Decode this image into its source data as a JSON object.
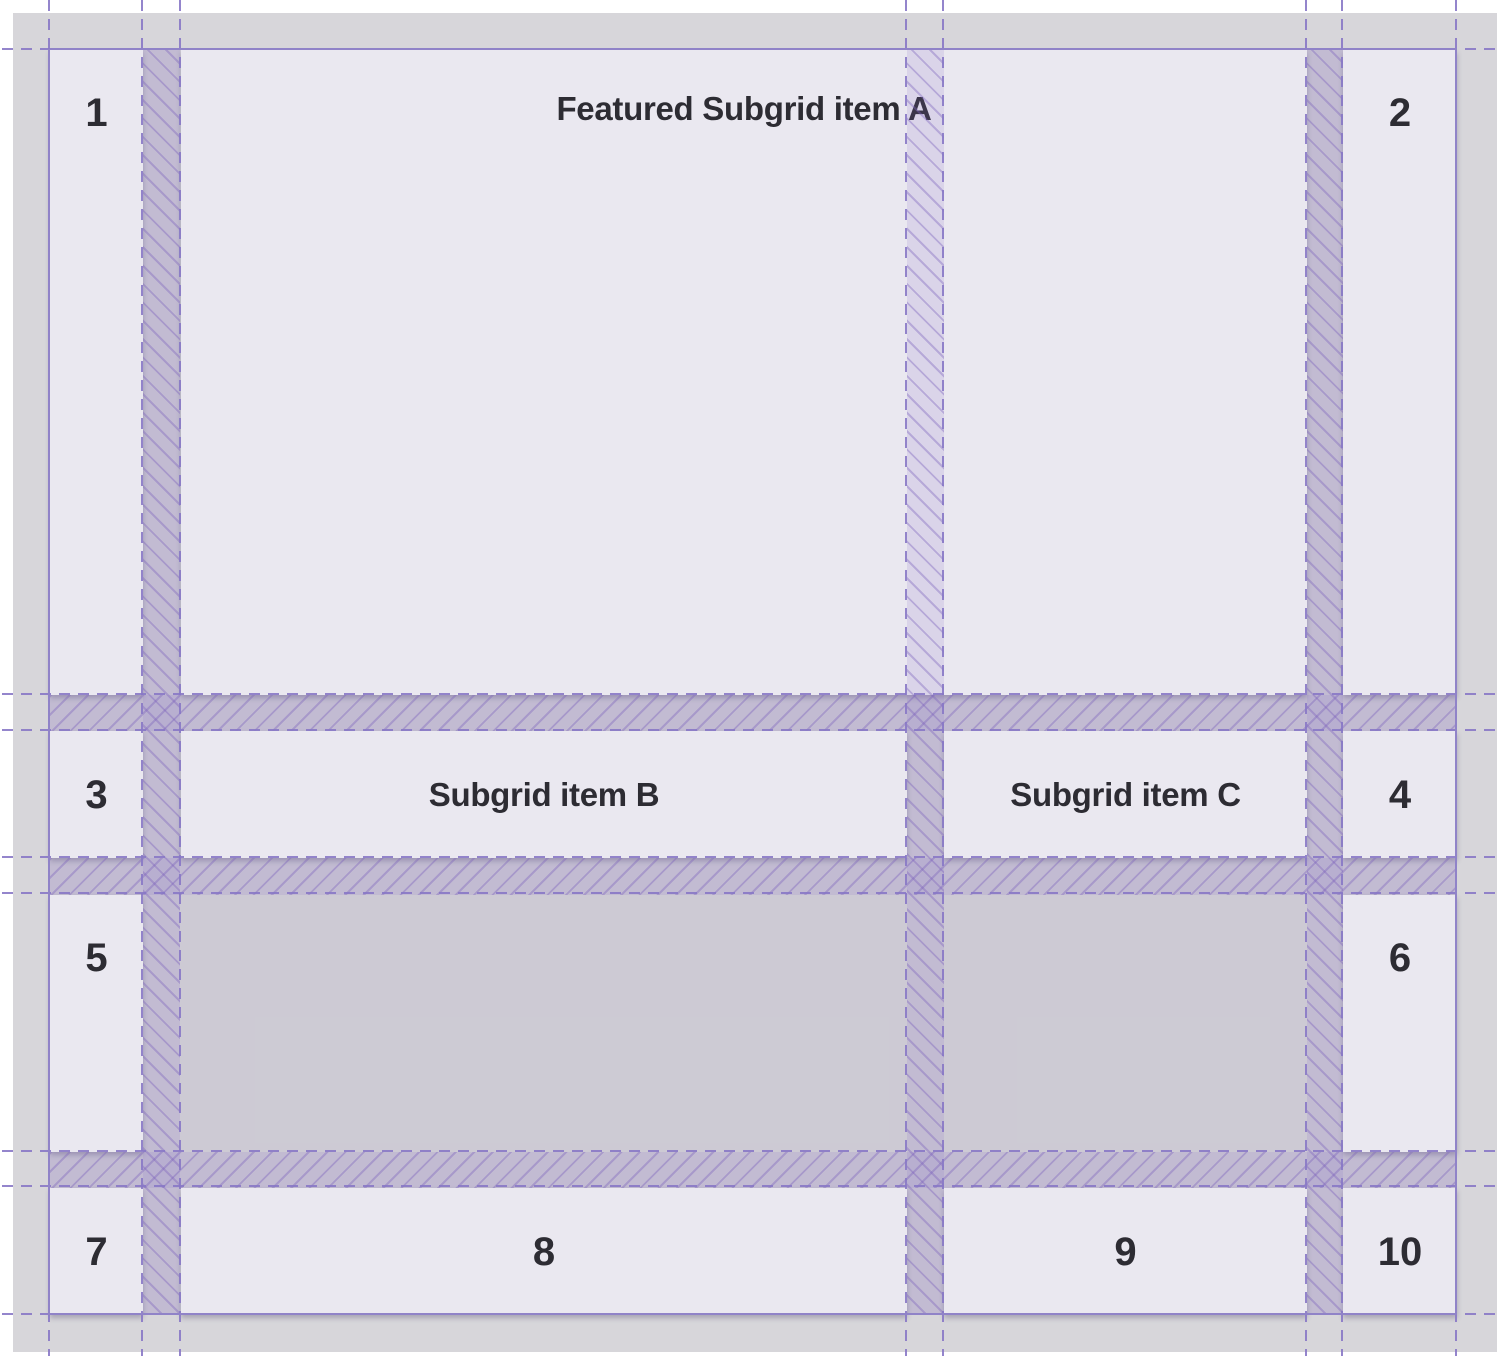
{
  "overlay": {
    "kind": "css-grid-inspector",
    "column_gap_count": 3,
    "row_gap_count": 3
  },
  "items": [
    {
      "label": "1"
    },
    {
      "label": "Featured Subgrid item A"
    },
    {
      "label": "2"
    },
    {
      "label": "3"
    },
    {
      "label": "Subgrid item B"
    },
    {
      "label": "Subgrid item C"
    },
    {
      "label": "4"
    },
    {
      "label": "5"
    },
    {
      "label": "6"
    },
    {
      "label": "7"
    },
    {
      "label": "8"
    },
    {
      "label": "9"
    },
    {
      "label": "10"
    }
  ],
  "colors": {
    "page_background": "#ffffff",
    "panel_background": "#d7d6da",
    "item_background": "#eae8f0",
    "grid_line_purple": "#9083c8",
    "gap_band_purple": "#8b73c7",
    "text": "#2d2c33"
  }
}
